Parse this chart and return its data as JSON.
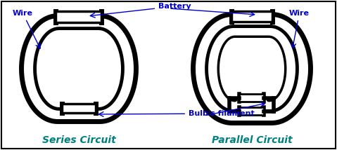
{
  "background_color": "#ffffff",
  "border_color": "#000000",
  "circuit_color": "#000000",
  "label_color": "#0000cc",
  "arrow_color": "#0000cc",
  "labels": {
    "wire_left": "Wire",
    "battery": "Battery",
    "wire_right": "Wire",
    "bulbs_filament": "Bulb's filament",
    "series": "Series Circuit",
    "parallel": "Parallel Circuit"
  },
  "figsize": [
    4.79,
    2.14
  ],
  "dpi": 100
}
